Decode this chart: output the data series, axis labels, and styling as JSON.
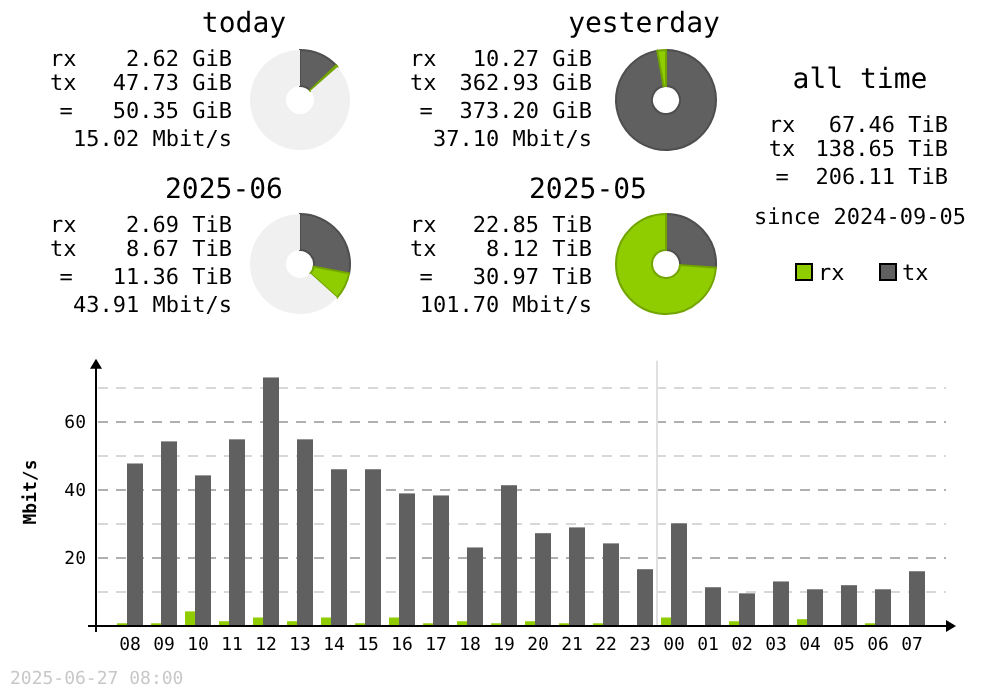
{
  "chart_data": [
    {
      "type": "donut",
      "title": "today",
      "categories": [
        null,
        null,
        null
      ],
      "values": [
        0.7,
        12.8,
        86.5
      ],
      "colors": [
        "#8fcc00",
        "#606060",
        "#f0f0f0"
      ],
      "annotations": [
        "rx",
        "2.62 GiB",
        "tx",
        "47.73 GiB",
        "=",
        "50.35 GiB",
        "15.02 Mbit/s"
      ]
    },
    {
      "type": "donut",
      "title": "yesterday",
      "categories": [
        null,
        null
      ],
      "values": [
        2.8,
        97.2
      ],
      "colors": [
        "#8fcc00",
        "#606060"
      ],
      "annotations": [
        "rx",
        "10.27 GiB",
        "tx",
        "362.93 GiB",
        "=",
        "373.20 GiB",
        "37.10 Mbit/s"
      ]
    },
    {
      "type": "donut",
      "title": "2025-06",
      "categories": [
        null,
        null,
        null
      ],
      "values": [
        8.7,
        28.0,
        63.3
      ],
      "colors": [
        "#8fcc00",
        "#606060",
        "#f0f0f0"
      ],
      "annotations": [
        "rx",
        "2.69 TiB",
        "tx",
        "8.67 TiB",
        "=",
        "11.36 TiB",
        "43.91 Mbit/s"
      ]
    },
    {
      "type": "donut",
      "title": "2025-05",
      "categories": [
        null,
        null
      ],
      "values": [
        73.8,
        26.2
      ],
      "colors": [
        "#8fcc00",
        "#606060"
      ],
      "annotations": [
        "rx",
        "22.85 TiB",
        "tx",
        "8.12 TiB",
        "=",
        "30.97 TiB",
        "101.70 Mbit/s"
      ]
    },
    {
      "type": "other",
      "title": "all time",
      "annotations": [
        "rx",
        "67.46 TiB",
        "tx",
        "138.65 TiB",
        "=",
        "206.11 TiB",
        "since 2024-09-05"
      ]
    },
    {
      "type": "bar",
      "ylabel": "Mbit/s",
      "categories": [
        "08",
        "09",
        "10",
        "11",
        "12",
        "13",
        "14",
        "15",
        "16",
        "17",
        "18",
        "19",
        "20",
        "21",
        "22",
        "23",
        "00",
        "01",
        "02",
        "03",
        "04",
        "05",
        "06",
        "07"
      ],
      "series": [
        {
          "name": "rx",
          "color": "#8fcc00",
          "values": [
            0.8,
            0.8,
            4.3,
            1.4,
            2.5,
            1.4,
            2.5,
            0.8,
            2.5,
            0.8,
            1.4,
            0.8,
            1.4,
            0.8,
            0.8,
            0,
            2.5,
            0,
            1.4,
            0,
            2.0,
            0,
            0.8,
            0
          ]
        },
        {
          "name": "tx",
          "color": "#606060",
          "values": [
            47.8,
            54.3,
            44.3,
            54.9,
            73.1,
            54.9,
            46.1,
            46.1,
            39.0,
            38.4,
            23.1,
            41.4,
            27.3,
            29.0,
            24.3,
            16.7,
            30.2,
            11.4,
            9.6,
            13.1,
            10.8,
            12.0,
            10.8,
            16.1
          ]
        }
      ],
      "ylim": [
        0,
        78
      ],
      "yticks": [
        {
          "value": 10,
          "label": null
        },
        20,
        {
          "value": 30,
          "label": null
        },
        40,
        {
          "value": 50,
          "label": null
        },
        60,
        {
          "value": 70,
          "label": null
        }
      ],
      "grid": "y",
      "legend": "top right",
      "ref_lines": [
        {
          "axis": "x",
          "value": "00",
          "color": "#e0e0e0"
        }
      ],
      "annotations": [
        "2025-06-27 08:00"
      ]
    }
  ]
}
